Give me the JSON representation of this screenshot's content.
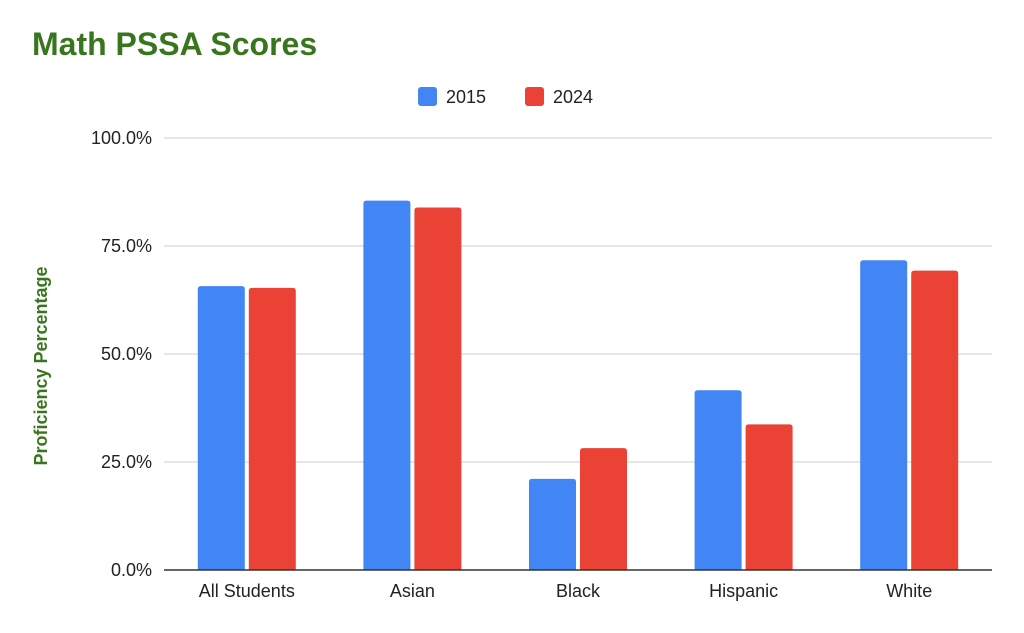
{
  "chart_data": {
    "type": "bar",
    "title": "Math PSSA Scores",
    "xlabel": "",
    "ylabel": "Proficiency Percentage",
    "categories": [
      "All Students",
      "Asian",
      "Black",
      "Hispanic",
      "White"
    ],
    "series": [
      {
        "name": "2015",
        "color": "#4285f4",
        "values": [
          65.7,
          85.5,
          21.1,
          41.6,
          71.7
        ]
      },
      {
        "name": "2024",
        "color": "#ea4335",
        "values": [
          65.3,
          83.9,
          28.2,
          33.7,
          69.3
        ]
      }
    ],
    "ylim": [
      0,
      100
    ],
    "yticks": [
      "0.0%",
      "25.0%",
      "50.0%",
      "75.0%",
      "100.0%"
    ],
    "ytick_values": [
      0,
      25,
      50,
      75,
      100
    ],
    "grid": true,
    "legend_position": "top-center",
    "title_color": "#38761d"
  }
}
